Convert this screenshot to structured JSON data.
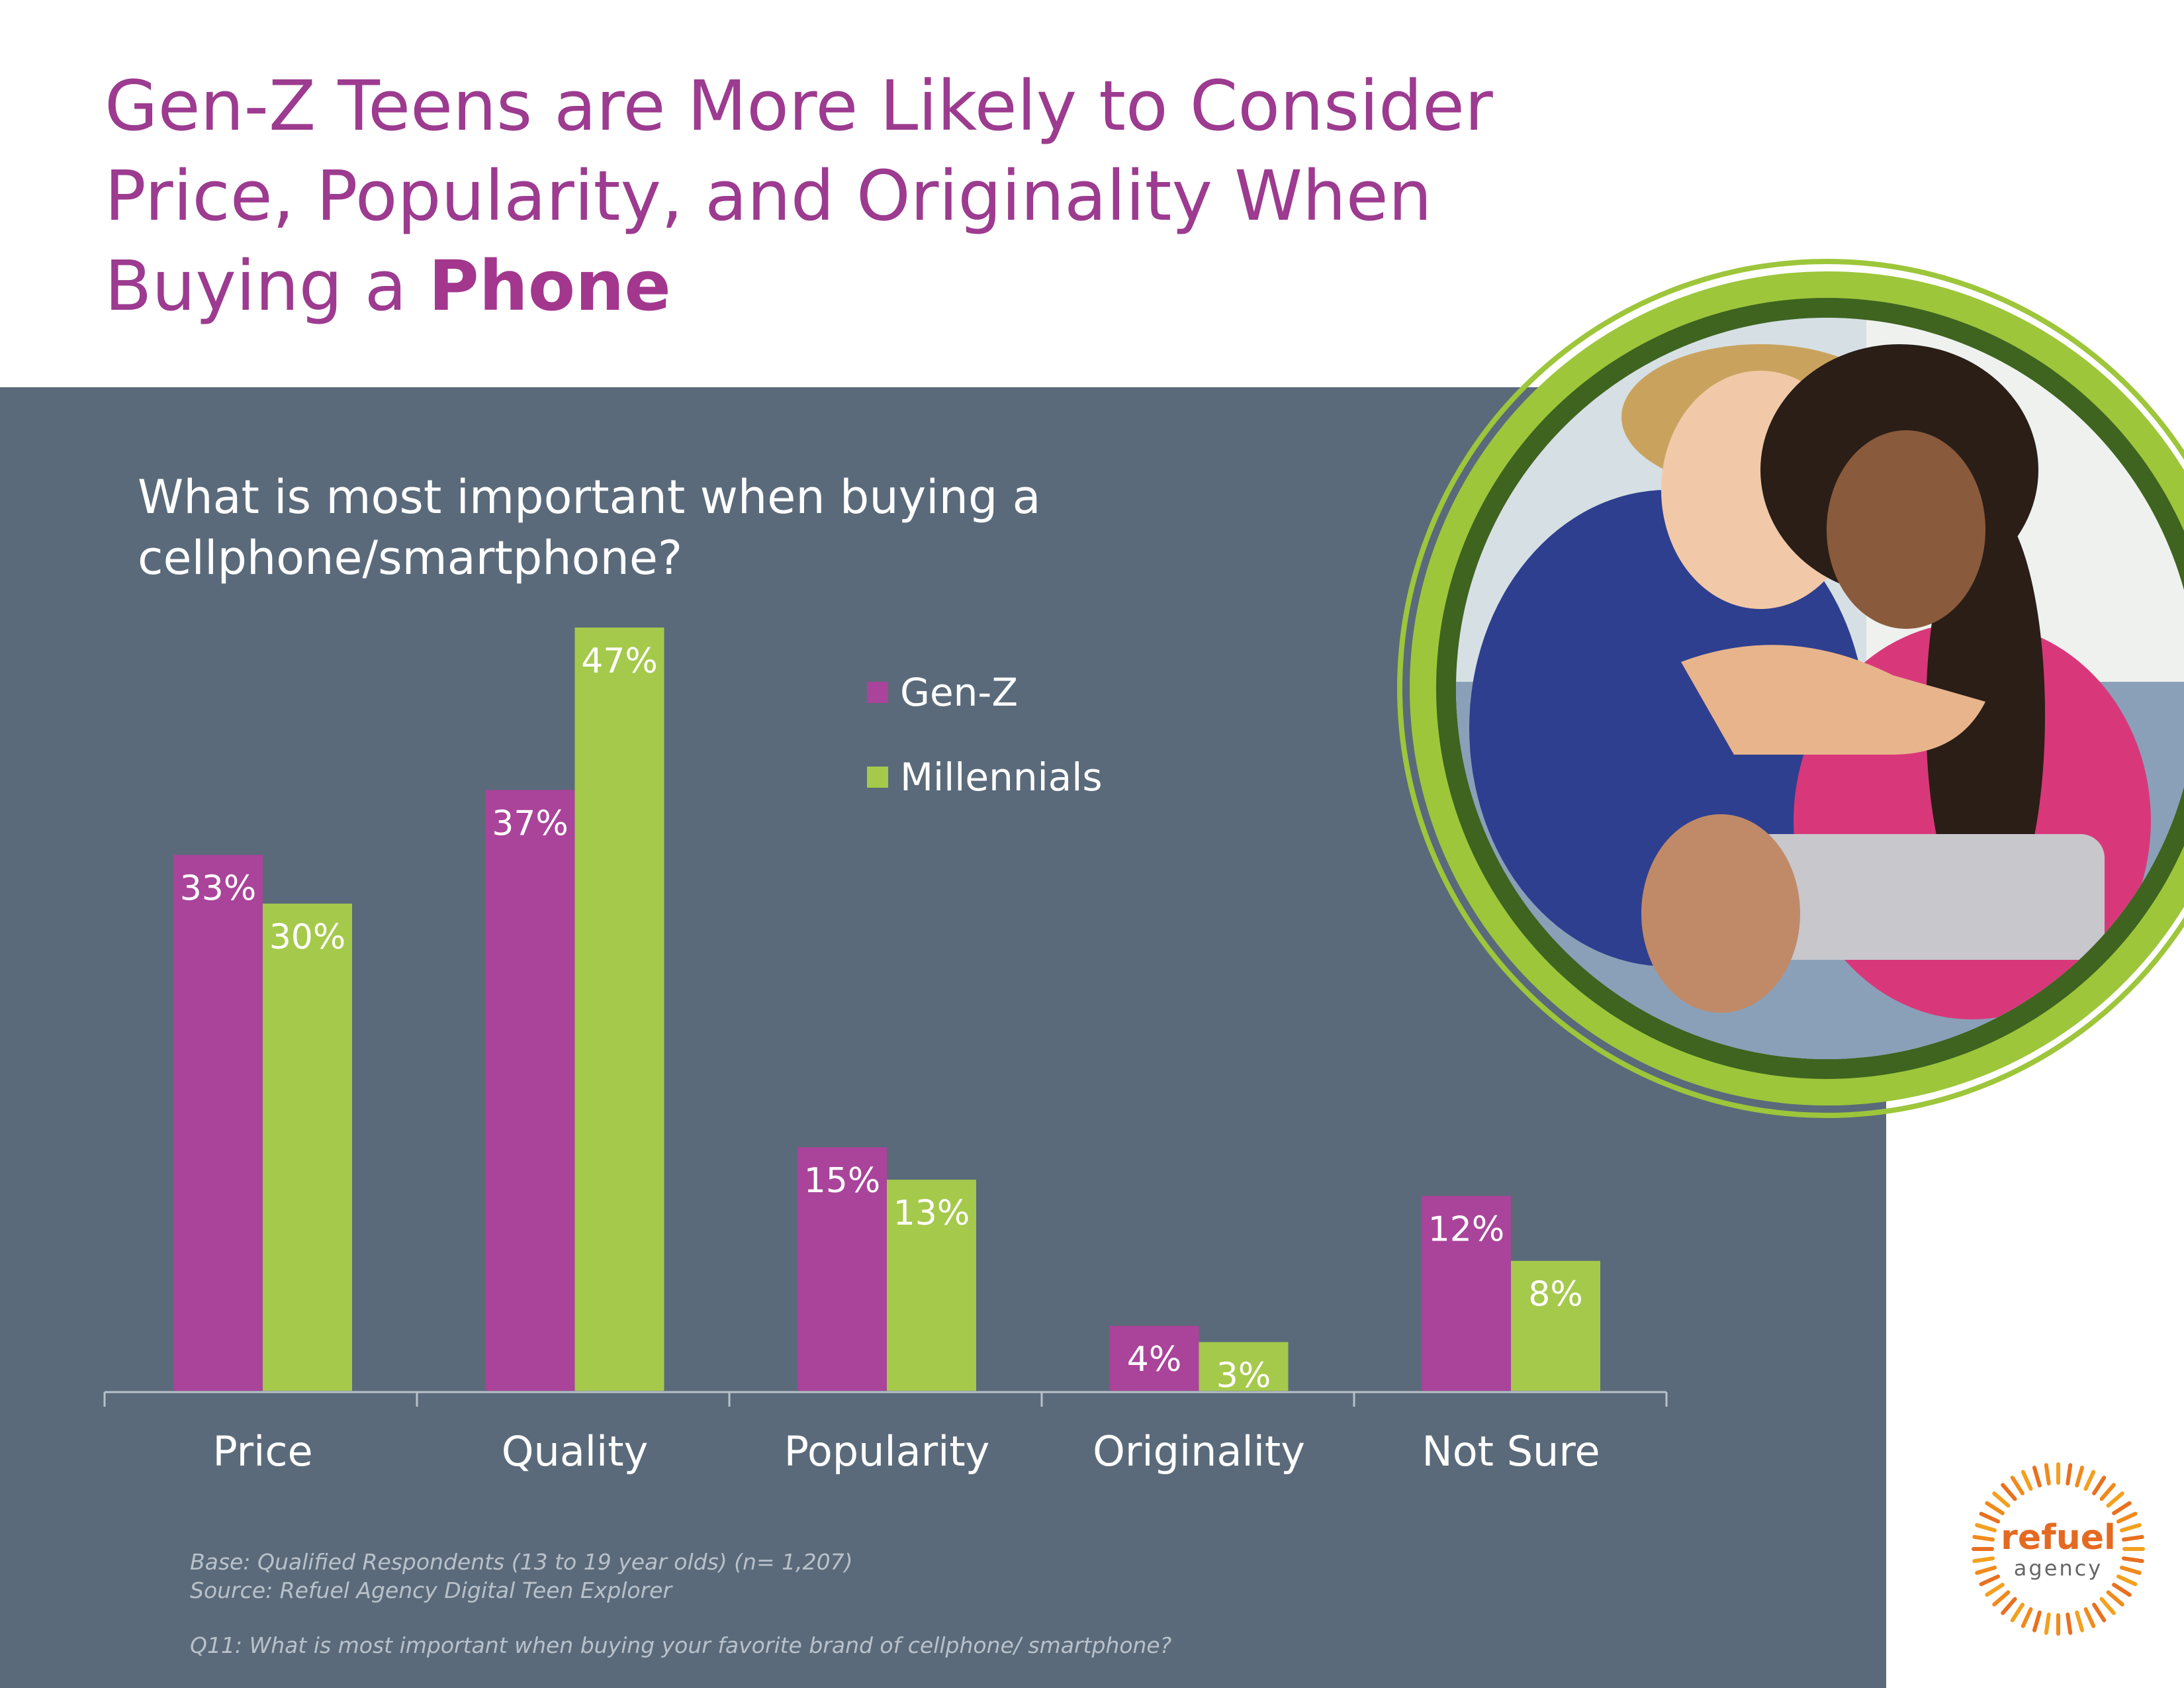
{
  "header": {
    "headline_main": "Gen-Z Teens are More Likely to Consider Price, Popularity, and Originality When Buying a ",
    "headline_bold": "Phone"
  },
  "question": "What is most important when buying a cellphone/smartphone?",
  "legend": [
    {
      "label": "Gen-Z",
      "color": "#a9449a"
    },
    {
      "label": "Millennials",
      "color": "#a5c94b"
    }
  ],
  "chart_data": {
    "type": "bar",
    "categories": [
      "Price",
      "Quality",
      "Popularity",
      "Originality",
      "Not Sure"
    ],
    "series": [
      {
        "name": "Gen-Z",
        "values": [
          33,
          37,
          15,
          4,
          12
        ],
        "labels": [
          "33%",
          "37%",
          "15%",
          "4%",
          "12%"
        ],
        "color": "#a9449a"
      },
      {
        "name": "Millennials",
        "values": [
          30,
          47,
          13,
          3,
          8
        ],
        "labels": [
          "30%",
          "47%",
          "13%",
          "3%",
          "8%"
        ],
        "color": "#a5c94b"
      }
    ],
    "ylim": [
      0,
      47
    ],
    "grid": false,
    "legend_position": "top-center"
  },
  "notes": {
    "base": "Base: Qualified Respondents (13 to 19 year olds)  (n= 1,207)",
    "source": "Source: Refuel Agency Digital Teen Explorer",
    "question": "Q11: What is most important when buying your favorite brand of cellphone/ smartphone?"
  },
  "logo": {
    "name": "refuel",
    "sub": "agency"
  },
  "photo": {
    "icon": "teens-selfie-photo"
  }
}
